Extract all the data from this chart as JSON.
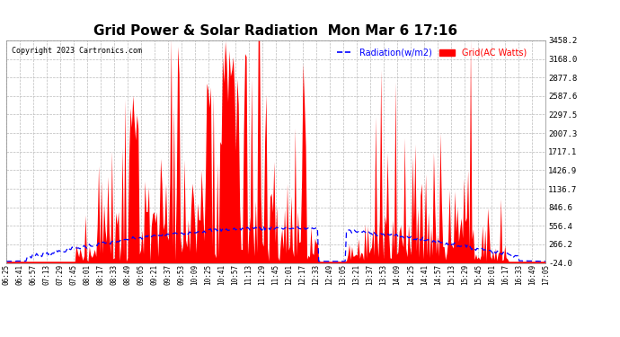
{
  "title": "Grid Power & Solar Radiation  Mon Mar 6 17:16",
  "copyright": "Copyright 2023 Cartronics.com",
  "legend_radiation": "Radiation(w/m2)",
  "legend_grid": "Grid(AC Watts)",
  "ymin": -24.0,
  "ymax": 3458.2,
  "yticks": [
    3458.2,
    3168.0,
    2877.8,
    2587.6,
    2297.5,
    2007.3,
    1717.1,
    1426.9,
    1136.7,
    846.6,
    556.4,
    266.2,
    -24.0
  ],
  "background_color": "#ffffff",
  "grid_color": "#bbbbbb",
  "fill_color": "#ff0000",
  "line_color": "#0000ff",
  "title_color": "#000000",
  "xtick_labels": [
    "06:25",
    "06:41",
    "06:57",
    "07:13",
    "07:29",
    "07:45",
    "08:01",
    "08:17",
    "08:33",
    "08:49",
    "09:05",
    "09:21",
    "09:37",
    "09:53",
    "10:09",
    "10:25",
    "10:41",
    "10:57",
    "11:13",
    "11:29",
    "11:45",
    "12:01",
    "12:17",
    "12:33",
    "12:49",
    "13:05",
    "13:21",
    "13:37",
    "13:53",
    "14:09",
    "14:25",
    "14:41",
    "14:57",
    "15:13",
    "15:29",
    "15:45",
    "16:01",
    "16:17",
    "16:33",
    "16:49",
    "17:05"
  ]
}
